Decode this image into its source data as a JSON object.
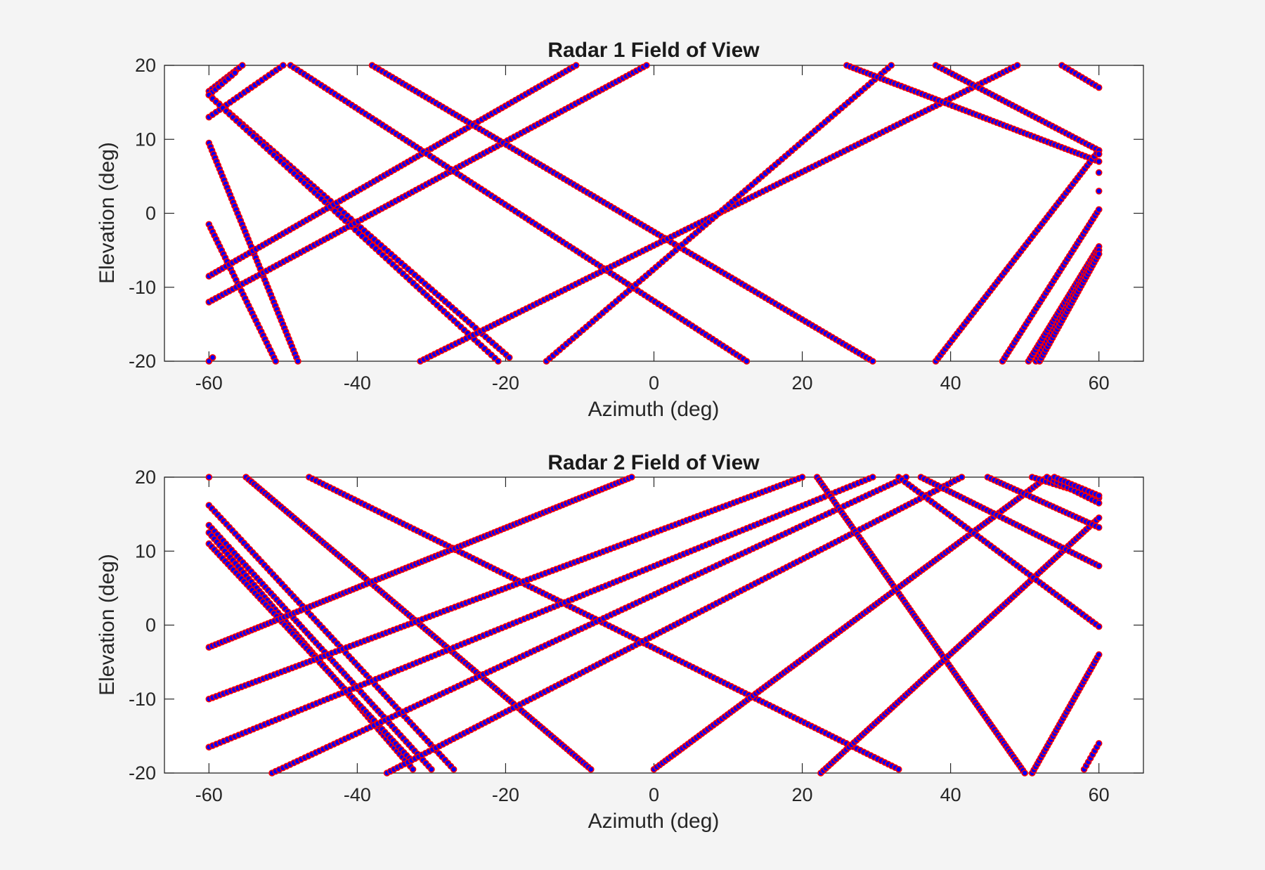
{
  "chart_data": [
    {
      "type": "scatter",
      "title": "Radar 1 Field of View",
      "xlabel": "Azimuth (deg)",
      "ylabel": "Elevation (deg)",
      "xlim": [
        -66,
        66
      ],
      "ylim": [
        -20,
        20
      ],
      "xticks": [
        -60,
        -40,
        -20,
        0,
        20,
        40,
        60
      ],
      "yticks": [
        -20,
        -10,
        0,
        10,
        20
      ],
      "grid": false,
      "marker": {
        "face": "#0000ff",
        "edge": "#ff0000",
        "shape": "circle"
      },
      "tracks": [
        {
          "from": [
            -60,
            16.5
          ],
          "to": [
            -55.5,
            20
          ],
          "n": 12
        },
        {
          "from": [
            -60,
            16
          ],
          "to": [
            -56.5,
            19
          ],
          "n": 9
        },
        {
          "from": [
            -60,
            13
          ],
          "to": [
            -50,
            20
          ],
          "n": 22
        },
        {
          "from": [
            -60,
            16
          ],
          "to": [
            -19.5,
            -19.5
          ],
          "n": 90
        },
        {
          "from": [
            -59.5,
            15.5
          ],
          "to": [
            -21,
            -20
          ],
          "n": 85
        },
        {
          "from": [
            -60,
            9.5
          ],
          "to": [
            -48,
            -20
          ],
          "n": 60
        },
        {
          "from": [
            -60,
            -1.5
          ],
          "to": [
            -51,
            -20
          ],
          "n": 38
        },
        {
          "from": [
            -60,
            -20
          ],
          "to": [
            -59.5,
            -19.5
          ],
          "n": 2
        },
        {
          "from": [
            -60,
            -8.5
          ],
          "to": [
            -10.5,
            20
          ],
          "n": 110
        },
        {
          "from": [
            -60,
            -12
          ],
          "to": [
            -1,
            20
          ],
          "n": 130
        },
        {
          "from": [
            -49,
            20
          ],
          "to": [
            12.5,
            -20
          ],
          "n": 135
        },
        {
          "from": [
            -38,
            20
          ],
          "to": [
            29.5,
            -20
          ],
          "n": 150
        },
        {
          "from": [
            -31.5,
            -20
          ],
          "to": [
            49,
            20
          ],
          "n": 170
        },
        {
          "from": [
            -14.5,
            -20
          ],
          "to": [
            32,
            20
          ],
          "n": 105
        },
        {
          "from": [
            26,
            20
          ],
          "to": [
            60,
            7
          ],
          "n": 75
        },
        {
          "from": [
            38,
            20
          ],
          "to": [
            60,
            8.5
          ],
          "n": 50
        },
        {
          "from": [
            55,
            20
          ],
          "to": [
            60,
            17
          ],
          "n": 12
        },
        {
          "from": [
            38,
            -20
          ],
          "to": [
            60,
            8.5
          ],
          "n": 70
        },
        {
          "from": [
            47,
            -20
          ],
          "to": [
            60,
            0.5
          ],
          "n": 50
        },
        {
          "from": [
            50.5,
            -20
          ],
          "to": [
            60,
            -4.5
          ],
          "n": 42
        },
        {
          "from": [
            51.5,
            -20
          ],
          "to": [
            60,
            -5
          ],
          "n": 40
        },
        {
          "from": [
            52,
            -20
          ],
          "to": [
            60,
            -5.5
          ],
          "n": 38
        },
        {
          "from": [
            60,
            8
          ],
          "to": [
            60,
            0.5
          ],
          "n": 4
        }
      ]
    },
    {
      "type": "scatter",
      "title": "Radar 2 Field of View",
      "xlabel": "Azimuth (deg)",
      "ylabel": "Elevation (deg)",
      "xlim": [
        -66,
        66
      ],
      "ylim": [
        -20,
        20
      ],
      "xticks": [
        -60,
        -40,
        -20,
        0,
        20,
        40,
        60
      ],
      "yticks": [
        -20,
        -10,
        0,
        10,
        20
      ],
      "grid": false,
      "marker": {
        "face": "#0000ff",
        "edge": "#ff0000",
        "shape": "circle"
      },
      "tracks": [
        {
          "from": [
            -60,
            20
          ],
          "to": [
            -60,
            20
          ],
          "n": 1
        },
        {
          "from": [
            -60,
            16.2
          ],
          "to": [
            -27,
            -19.5
          ],
          "n": 85
        },
        {
          "from": [
            -60,
            13.5
          ],
          "to": [
            -30,
            -19.5
          ],
          "n": 80
        },
        {
          "from": [
            -60,
            12.5
          ],
          "to": [
            -32.5,
            -19.5
          ],
          "n": 78
        },
        {
          "from": [
            -60,
            11
          ],
          "to": [
            -33,
            -18
          ],
          "n": 75
        },
        {
          "from": [
            -55,
            20
          ],
          "to": [
            -8.5,
            -19.5
          ],
          "n": 130
        },
        {
          "from": [
            -46.5,
            20
          ],
          "to": [
            33,
            -19.5
          ],
          "n": 170
        },
        {
          "from": [
            -60,
            -3
          ],
          "to": [
            -3,
            20
          ],
          "n": 130
        },
        {
          "from": [
            -60,
            -10
          ],
          "to": [
            20,
            20
          ],
          "n": 165
        },
        {
          "from": [
            -60,
            -16.5
          ],
          "to": [
            29.5,
            20
          ],
          "n": 180
        },
        {
          "from": [
            -51.5,
            -20
          ],
          "to": [
            34,
            20
          ],
          "n": 175
        },
        {
          "from": [
            -36,
            -20
          ],
          "to": [
            41.5,
            20
          ],
          "n": 165
        },
        {
          "from": [
            22,
            20
          ],
          "to": [
            50,
            -20
          ],
          "n": 110
        },
        {
          "from": [
            0,
            -19.5
          ],
          "to": [
            53,
            20
          ],
          "n": 140
        },
        {
          "from": [
            22.5,
            -20
          ],
          "to": [
            60,
            14.5
          ],
          "n": 110
        },
        {
          "from": [
            36,
            20
          ],
          "to": [
            60,
            8
          ],
          "n": 55
        },
        {
          "from": [
            45,
            20
          ],
          "to": [
            60,
            13.2
          ],
          "n": 35
        },
        {
          "from": [
            33,
            20
          ],
          "to": [
            60,
            -0.2
          ],
          "n": 62
        },
        {
          "from": [
            51,
            20
          ],
          "to": [
            60,
            17.2
          ],
          "n": 20
        },
        {
          "from": [
            53,
            20
          ],
          "to": [
            60,
            16.5
          ],
          "n": 16
        },
        {
          "from": [
            54,
            20
          ],
          "to": [
            60,
            17.5
          ],
          "n": 14
        },
        {
          "from": [
            51,
            -20
          ],
          "to": [
            60,
            -4
          ],
          "n": 40
        },
        {
          "from": [
            58,
            -19.5
          ],
          "to": [
            60,
            -16
          ],
          "n": 8
        }
      ]
    }
  ]
}
